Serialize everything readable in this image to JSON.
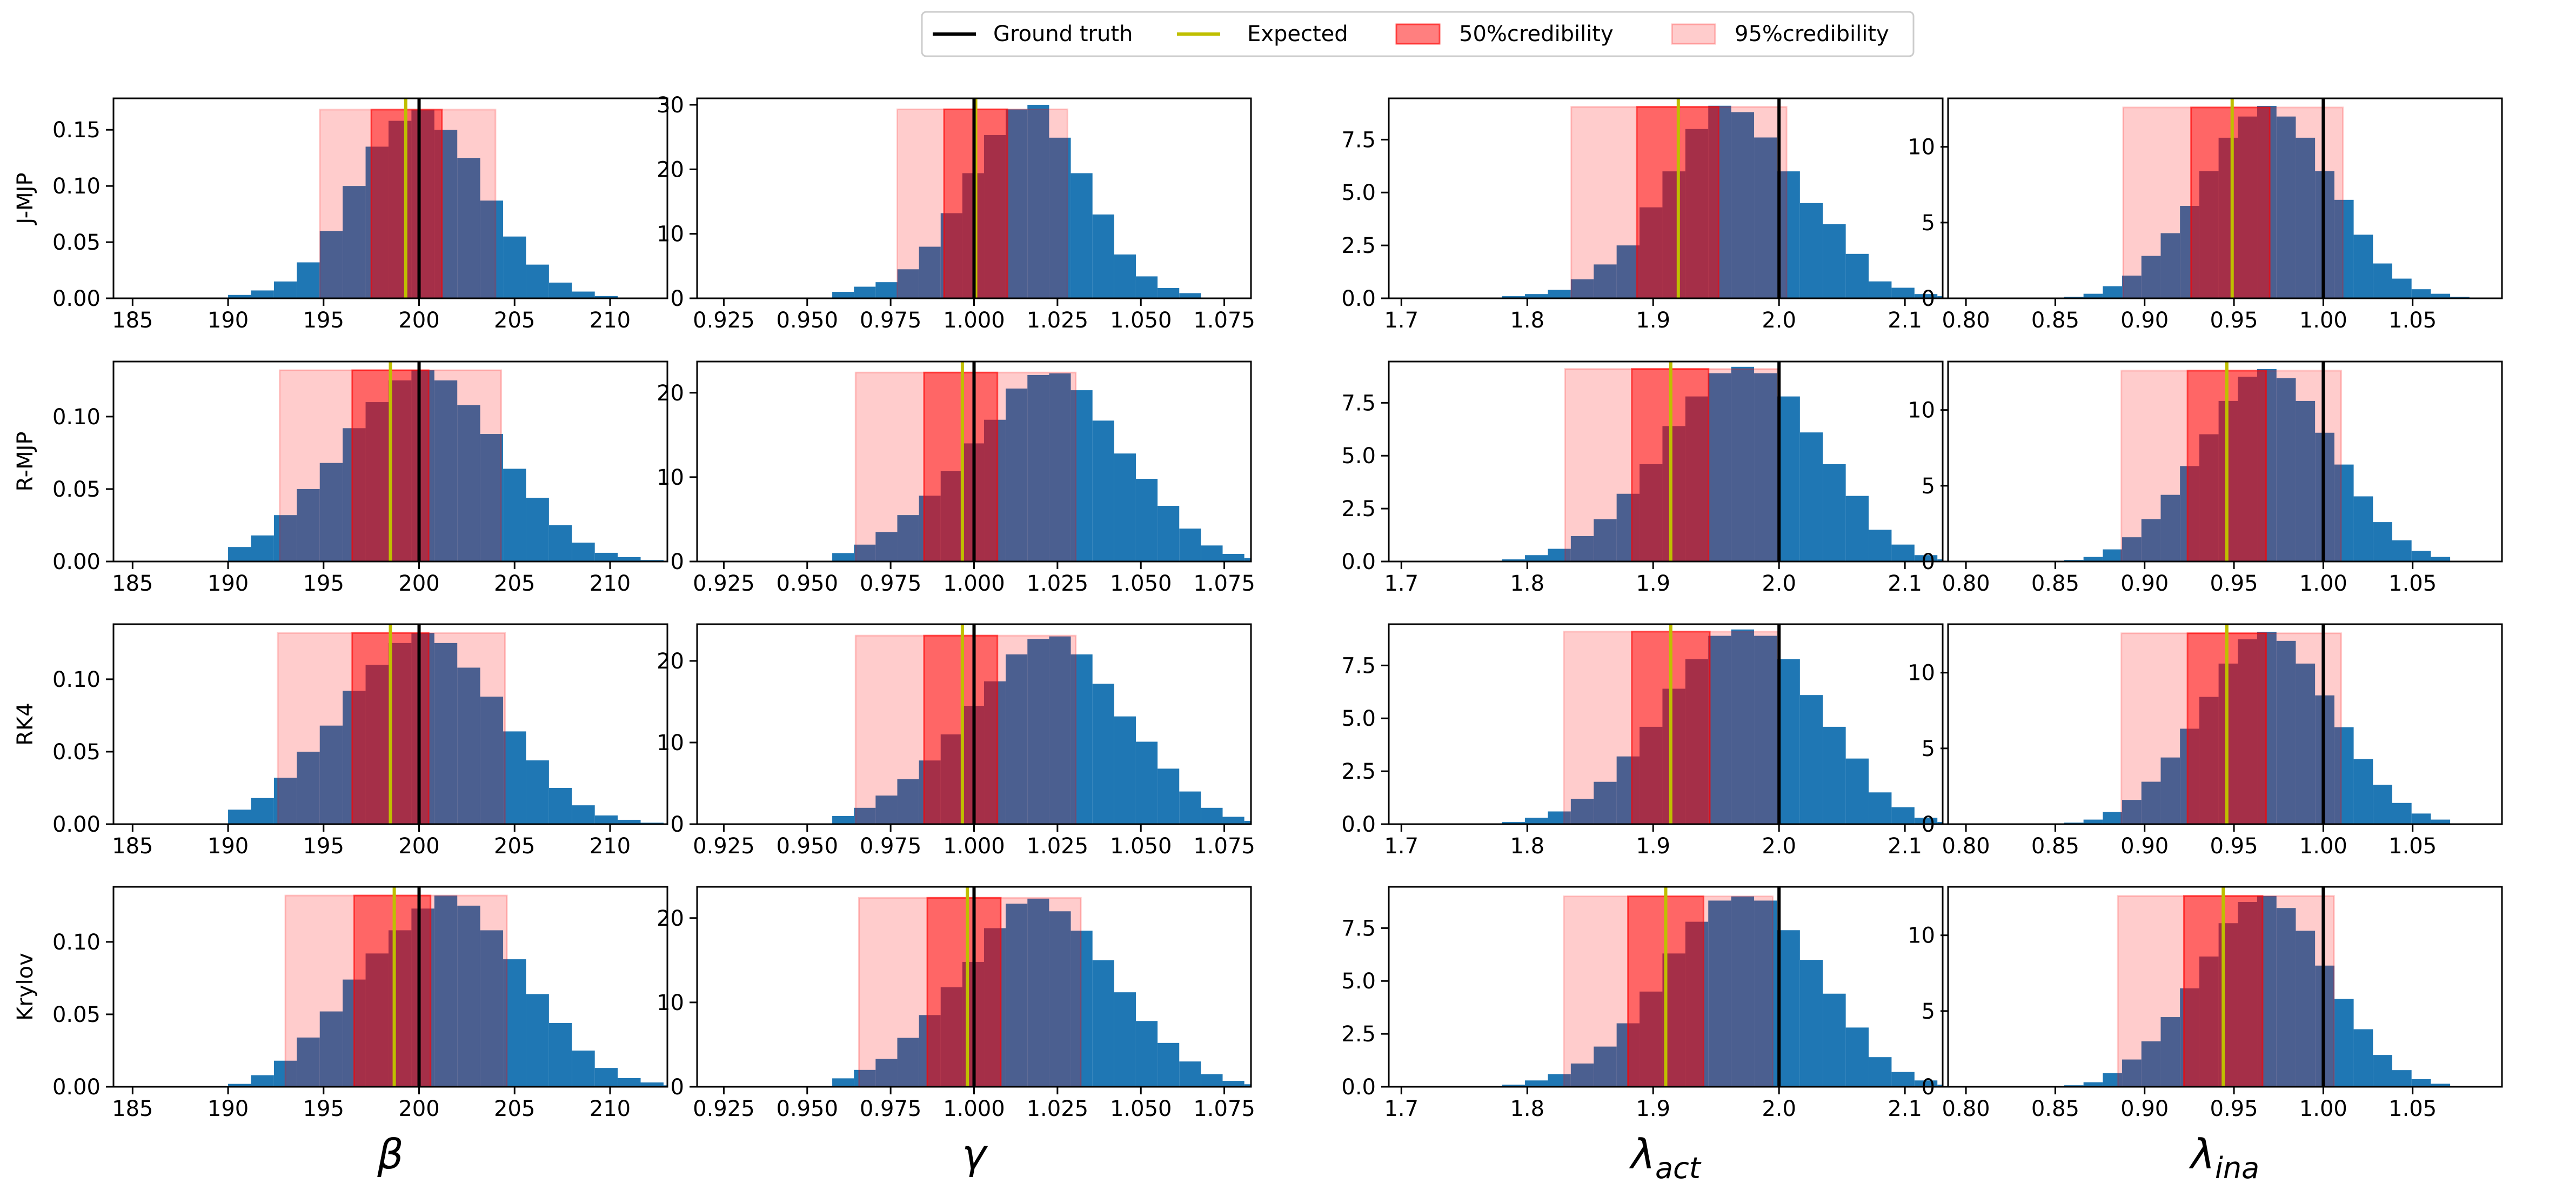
{
  "legend": {
    "entries": [
      {
        "label": "Ground truth",
        "color": "#000000",
        "kind": "line"
      },
      {
        "label": "Expected",
        "color": "#bfbf00",
        "kind": "line"
      },
      {
        "label": "50%credibility",
        "color": "#ff0000",
        "kind": "patch",
        "alpha": 0.5
      },
      {
        "label": "95%credibility",
        "color": "#ff0000",
        "kind": "patch",
        "alpha": 0.2
      }
    ]
  },
  "colors": {
    "hist": "#1f77b4",
    "truth": "#000000",
    "expected": "#bfbf00",
    "band": "#ff0000"
  },
  "chart_data": {
    "type": "bar",
    "title": "",
    "rows": [
      "J-MJP",
      "R-MJP",
      "RK4",
      "Krylov"
    ],
    "columns": [
      {
        "xlabel": "β",
        "xlim": [
          184,
          213
        ],
        "ticks": [
          185,
          190,
          195,
          200,
          205,
          210
        ],
        "tick_labels": [
          "185",
          "190",
          "195",
          "200",
          "205",
          "210"
        ],
        "bin_start": 190,
        "bin_width": 1.2,
        "truth": 200
      },
      {
        "xlabel": "γ",
        "xlim": [
          0.917,
          1.083
        ],
        "ticks": [
          0.925,
          0.95,
          0.975,
          1.0,
          1.025,
          1.05,
          1.075
        ],
        "tick_labels": [
          "0.925",
          "0.950",
          "0.975",
          "1.000",
          "1.025",
          "1.050",
          "1.075"
        ],
        "bin_start": 0.9575,
        "bin_width": 0.0065,
        "truth": 1.0
      },
      {
        "xlabel": "λ_act",
        "xlabel_main": "λ",
        "xlabel_sub": "act",
        "xlim": [
          1.69,
          2.13
        ],
        "ticks": [
          1.7,
          1.8,
          1.9,
          2.0,
          2.1
        ],
        "tick_labels": [
          "1.7",
          "1.8",
          "1.9",
          "2.0",
          "2.1"
        ],
        "bin_start": 1.78,
        "bin_width": 0.0182,
        "truth": 2.0
      },
      {
        "xlabel": "λ_ina",
        "xlabel_main": "λ",
        "xlabel_sub": "ina",
        "xlim": [
          0.79,
          1.1
        ],
        "ticks": [
          0.8,
          0.85,
          0.9,
          0.95,
          1.0,
          1.05
        ],
        "tick_labels": [
          "0.80",
          "0.85",
          "0.90",
          "0.95",
          "1.00",
          "1.05"
        ],
        "bin_start": 0.855,
        "bin_width": 0.0108,
        "truth": 1.0
      }
    ],
    "panels": [
      [
        {
          "ylim": [
            0,
            0.178
          ],
          "yticks": [
            0,
            0.05,
            0.1,
            0.15
          ],
          "ytick_labels": [
            "0.00",
            "0.05",
            "0.10",
            "0.15"
          ],
          "expected": 199.3,
          "ci50": [
            197.5,
            201.2
          ],
          "ci95": [
            194.8,
            204.0
          ],
          "band_top": 0.168,
          "values": [
            0.003,
            0.007,
            0.015,
            0.032,
            0.06,
            0.1,
            0.135,
            0.158,
            0.168,
            0.15,
            0.125,
            0.087,
            0.055,
            0.03,
            0.014,
            0.006,
            0.002
          ]
        },
        {
          "ylim": [
            0,
            31
          ],
          "yticks": [
            0,
            10,
            20,
            30
          ],
          "ytick_labels": [
            "0",
            "10",
            "20",
            "30"
          ],
          "expected": 1.0005,
          "ci50": [
            0.991,
            1.01
          ],
          "ci95": [
            0.977,
            1.028
          ],
          "band_top": 29.3,
          "values": [
            1.0,
            1.8,
            2.5,
            4.5,
            8.0,
            13.2,
            19.4,
            25.3,
            29.3,
            30.0,
            24.9,
            19.4,
            13.0,
            6.8,
            3.4,
            1.6,
            0.8
          ]
        },
        {
          "ylim": [
            0,
            9.45
          ],
          "yticks": [
            0,
            2.5,
            5.0,
            7.5
          ],
          "ytick_labels": [
            "0.0",
            "2.5",
            "5.0",
            "7.5"
          ],
          "expected": 1.92,
          "ci50": [
            1.887,
            1.952
          ],
          "ci95": [
            1.835,
            2.006
          ],
          "band_top": 9.05,
          "values": [
            0.1,
            0.2,
            0.4,
            0.9,
            1.6,
            2.5,
            4.3,
            6.0,
            8.0,
            9.1,
            8.8,
            7.6,
            6.0,
            4.5,
            3.5,
            2.1,
            0.8,
            0.5,
            0.2,
            0.1
          ]
        },
        {
          "ylim": [
            0,
            13.2
          ],
          "yticks": [
            0,
            5,
            10
          ],
          "ytick_labels": [
            "0",
            "5",
            "10"
          ],
          "expected": 0.949,
          "ci50": [
            0.926,
            0.97
          ],
          "ci95": [
            0.888,
            1.011
          ],
          "band_top": 12.6,
          "values": [
            0.1,
            0.3,
            0.8,
            1.5,
            2.8,
            4.3,
            6.1,
            8.4,
            10.6,
            12.0,
            12.7,
            12.0,
            10.6,
            8.4,
            6.5,
            4.2,
            2.3,
            1.3,
            0.6,
            0.3,
            0.1
          ]
        }
      ],
      [
        {
          "ylim": [
            0,
            0.138
          ],
          "yticks": [
            0,
            0.05,
            0.1
          ],
          "ytick_labels": [
            "0.00",
            "0.05",
            "0.10"
          ],
          "expected": 198.5,
          "ci50": [
            196.5,
            200.5
          ],
          "ci95": [
            192.7,
            204.3
          ],
          "band_top": 0.132,
          "values": [
            0.01,
            0.018,
            0.032,
            0.05,
            0.068,
            0.092,
            0.11,
            0.125,
            0.132,
            0.125,
            0.108,
            0.088,
            0.064,
            0.044,
            0.025,
            0.013,
            0.006,
            0.003,
            0.001
          ]
        },
        {
          "ylim": [
            0,
            23.7
          ],
          "yticks": [
            0,
            10,
            20
          ],
          "ytick_labels": [
            "0",
            "10",
            "20"
          ],
          "expected": 0.9965,
          "ci50": [
            0.985,
            1.007
          ],
          "ci95": [
            0.9645,
            1.0305
          ],
          "band_top": 22.4,
          "values": [
            1.0,
            2.0,
            3.5,
            5.5,
            7.8,
            10.7,
            14.0,
            16.8,
            20.5,
            22.1,
            22.3,
            20.3,
            16.7,
            12.8,
            9.8,
            6.6,
            3.9,
            1.9,
            0.9,
            0.4
          ]
        },
        {
          "ylim": [
            0,
            9.45
          ],
          "yticks": [
            0,
            2.5,
            5.0,
            7.5
          ],
          "ytick_labels": [
            "0.0",
            "2.5",
            "5.0",
            "7.5"
          ],
          "expected": 1.914,
          "ci50": [
            1.883,
            1.944
          ],
          "ci95": [
            1.83,
            2.0
          ],
          "band_top": 9.1,
          "values": [
            0.1,
            0.3,
            0.6,
            1.2,
            2.0,
            3.2,
            4.6,
            6.4,
            7.8,
            8.9,
            9.2,
            8.9,
            7.8,
            6.1,
            4.6,
            3.1,
            1.5,
            0.8,
            0.3,
            0.1
          ]
        },
        {
          "ylim": [
            0,
            13.2
          ],
          "yticks": [
            0,
            5,
            10
          ],
          "ytick_labels": [
            "0",
            "5",
            "10"
          ],
          "expected": 0.946,
          "ci50": [
            0.924,
            0.968
          ],
          "ci95": [
            0.887,
            1.01
          ],
          "band_top": 12.6,
          "values": [
            0.1,
            0.3,
            0.8,
            1.6,
            2.8,
            4.4,
            6.3,
            8.4,
            10.6,
            12.2,
            12.7,
            12.1,
            10.6,
            8.5,
            6.4,
            4.3,
            2.6,
            1.4,
            0.7,
            0.3
          ]
        }
      ],
      [
        {
          "ylim": [
            0,
            0.138
          ],
          "yticks": [
            0,
            0.05,
            0.1
          ],
          "ytick_labels": [
            "0.00",
            "0.05",
            "0.10"
          ],
          "expected": 198.5,
          "ci50": [
            196.5,
            200.5
          ],
          "ci95": [
            192.6,
            204.5
          ],
          "band_top": 0.132,
          "values": [
            0.01,
            0.018,
            0.032,
            0.05,
            0.068,
            0.092,
            0.11,
            0.125,
            0.132,
            0.125,
            0.108,
            0.088,
            0.064,
            0.044,
            0.025,
            0.013,
            0.006,
            0.003,
            0.001
          ]
        },
        {
          "ylim": [
            0,
            24.5
          ],
          "yticks": [
            0,
            10,
            20
          ],
          "ytick_labels": [
            "0",
            "10",
            "20"
          ],
          "expected": 0.9965,
          "ci50": [
            0.985,
            1.007
          ],
          "ci95": [
            0.9645,
            1.0305
          ],
          "band_top": 23.1,
          "values": [
            1.0,
            2.0,
            3.5,
            5.5,
            7.8,
            11.0,
            14.5,
            17.5,
            20.8,
            22.7,
            23.0,
            20.8,
            17.2,
            13.2,
            10.1,
            6.8,
            4.0,
            2.0,
            0.9,
            0.4
          ]
        },
        {
          "ylim": [
            0,
            9.45
          ],
          "yticks": [
            0,
            2.5,
            5.0,
            7.5
          ],
          "ytick_labels": [
            "0.0",
            "2.5",
            "5.0",
            "7.5"
          ],
          "expected": 1.914,
          "ci50": [
            1.883,
            1.945
          ],
          "ci95": [
            1.829,
            2.0
          ],
          "band_top": 9.1,
          "values": [
            0.1,
            0.3,
            0.6,
            1.2,
            2.0,
            3.2,
            4.6,
            6.4,
            7.8,
            8.9,
            9.2,
            8.9,
            7.8,
            6.1,
            4.6,
            3.1,
            1.5,
            0.8,
            0.3,
            0.1
          ]
        },
        {
          "ylim": [
            0,
            13.2
          ],
          "yticks": [
            0,
            5,
            10
          ],
          "ytick_labels": [
            "0",
            "5",
            "10"
          ],
          "expected": 0.946,
          "ci50": [
            0.924,
            0.968
          ],
          "ci95": [
            0.887,
            1.01
          ],
          "band_top": 12.6,
          "values": [
            0.1,
            0.3,
            0.8,
            1.6,
            2.8,
            4.4,
            6.3,
            8.4,
            10.6,
            12.2,
            12.7,
            12.1,
            10.6,
            8.5,
            6.4,
            4.3,
            2.6,
            1.4,
            0.7,
            0.3
          ]
        }
      ],
      [
        {
          "ylim": [
            0,
            0.138
          ],
          "yticks": [
            0,
            0.05,
            0.1
          ],
          "ytick_labels": [
            "0.00",
            "0.05",
            "0.10"
          ],
          "expected": 198.7,
          "ci50": [
            196.6,
            200.6
          ],
          "ci95": [
            193.0,
            204.6
          ],
          "band_top": 0.132,
          "values": [
            0.002,
            0.008,
            0.018,
            0.034,
            0.052,
            0.074,
            0.092,
            0.108,
            0.123,
            0.132,
            0.125,
            0.108,
            0.088,
            0.064,
            0.044,
            0.025,
            0.013,
            0.006,
            0.003,
            0.001
          ]
        },
        {
          "ylim": [
            0,
            23.7
          ],
          "yticks": [
            0,
            10,
            20
          ],
          "ytick_labels": [
            "0",
            "10",
            "20"
          ],
          "expected": 0.998,
          "ci50": [
            0.986,
            1.008
          ],
          "ci95": [
            0.9655,
            1.032
          ],
          "band_top": 22.4,
          "values": [
            1.0,
            2.0,
            3.3,
            5.8,
            8.5,
            11.8,
            14.8,
            18.8,
            21.7,
            22.3,
            20.8,
            18.5,
            15.0,
            11.2,
            7.8,
            5.2,
            3.0,
            1.5,
            0.7,
            0.3
          ]
        },
        {
          "ylim": [
            0,
            9.45
          ],
          "yticks": [
            0,
            2.5,
            5.0,
            7.5
          ],
          "ytick_labels": [
            "0.0",
            "2.5",
            "5.0",
            "7.5"
          ],
          "expected": 1.91,
          "ci50": [
            1.88,
            1.94
          ],
          "ci95": [
            1.829,
            1.995
          ],
          "band_top": 9.0,
          "values": [
            0.1,
            0.3,
            0.6,
            1.1,
            1.9,
            3.0,
            4.5,
            6.3,
            7.8,
            8.8,
            9.0,
            8.8,
            7.4,
            6.0,
            4.4,
            2.8,
            1.4,
            0.7,
            0.3,
            0.1
          ]
        },
        {
          "ylim": [
            0,
            13.2
          ],
          "yticks": [
            0,
            5,
            10
          ],
          "ytick_labels": [
            "0",
            "5",
            "10"
          ],
          "expected": 0.944,
          "ci50": [
            0.922,
            0.966
          ],
          "ci95": [
            0.885,
            1.006
          ],
          "band_top": 12.6,
          "values": [
            0.1,
            0.3,
            0.9,
            1.8,
            3.0,
            4.6,
            6.5,
            8.6,
            10.8,
            12.2,
            12.6,
            11.8,
            10.3,
            8.0,
            5.8,
            3.8,
            2.1,
            1.1,
            0.5,
            0.2
          ]
        }
      ]
    ]
  }
}
